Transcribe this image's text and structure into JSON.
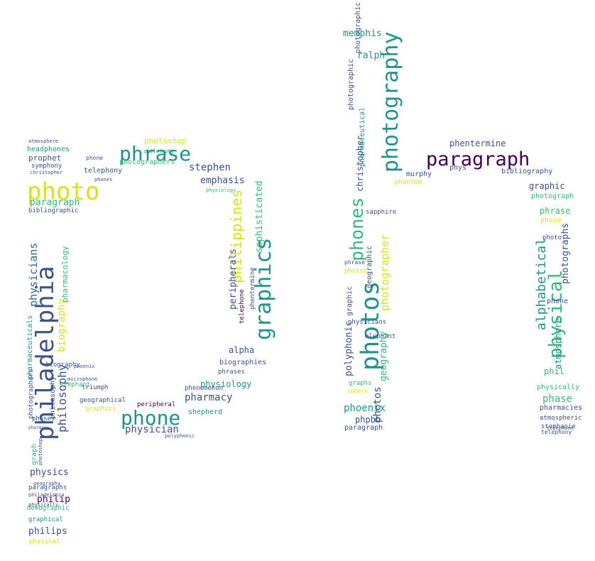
{
  "palette": {
    "dark_purple": "#440154",
    "indigo": "#3b528b",
    "blue": "#31688e",
    "teal": "#21918c",
    "green": "#35b779",
    "lime": "#90d743",
    "yellow": "#d8e219"
  },
  "words": [
    {
      "text": "phrase",
      "color": "#21918c"
    },
    {
      "text": "photoshop",
      "color": "#d8e219"
    },
    {
      "text": "photo",
      "color": "#d8e219"
    },
    {
      "text": "paragraph",
      "color": "#35b779"
    },
    {
      "text": "headphones",
      "color": "#21918c"
    },
    {
      "text": "prophet",
      "color": "#3b528b"
    },
    {
      "text": "symphony",
      "color": "#3b528b"
    },
    {
      "text": "christopher",
      "color": "#3b528b"
    },
    {
      "text": "atmosphere",
      "color": "#3b528b"
    },
    {
      "text": "bibliographic",
      "color": "#3b528b"
    },
    {
      "text": "philosophy",
      "color": "#21918c"
    },
    {
      "text": "photographers",
      "color": "#35b779"
    },
    {
      "text": "phone",
      "color": "#3b528b"
    },
    {
      "text": "telephony",
      "color": "#3b528b"
    },
    {
      "text": "phones",
      "color": "#3b528b"
    },
    {
      "text": "stephen",
      "color": "#3b528b"
    },
    {
      "text": "emphasis",
      "color": "#3b528b"
    },
    {
      "text": "physiology",
      "color": "#35b779"
    },
    {
      "text": "philippines",
      "color": "#d8e219"
    },
    {
      "text": "sophisticated",
      "color": "#35b779"
    },
    {
      "text": "graphics",
      "color": "#21918c"
    },
    {
      "text": "peripherals",
      "color": "#3b528b"
    },
    {
      "text": "telephone",
      "color": "#440154"
    },
    {
      "text": "philadelphia",
      "color": "#3b528b"
    },
    {
      "text": "physicians",
      "color": "#31688e"
    },
    {
      "text": "biography",
      "color": "#d8e219"
    },
    {
      "text": "pharmacology",
      "color": "#35b779"
    },
    {
      "text": "philosophy",
      "color": "#3b528b"
    },
    {
      "text": "elephant",
      "color": "#35b779"
    },
    {
      "text": "triumph",
      "color": "#3b528b"
    },
    {
      "text": "geographical",
      "color": "#3b528b"
    },
    {
      "text": "graphics",
      "color": "#d8e219"
    },
    {
      "text": "phone",
      "color": "#21918c"
    },
    {
      "text": "physician",
      "color": "#3b528b"
    },
    {
      "text": "peripheral",
      "color": "#440154"
    },
    {
      "text": "phenomenon",
      "color": "#3b528b"
    },
    {
      "text": "shepherd",
      "color": "#21918c"
    },
    {
      "text": "pharmacy",
      "color": "#3b528b"
    },
    {
      "text": "physiology",
      "color": "#21918c"
    },
    {
      "text": "phrases",
      "color": "#3b528b"
    },
    {
      "text": "biographies",
      "color": "#3b528b"
    },
    {
      "text": "alpha",
      "color": "#3b528b"
    },
    {
      "text": "phentermine",
      "color": "#3b528b"
    },
    {
      "text": "phases",
      "color": "#3b528b"
    },
    {
      "text": "graph",
      "color": "#35b779"
    },
    {
      "text": "physics",
      "color": "#3b528b"
    },
    {
      "text": "paragraphs",
      "color": "#3b528b"
    },
    {
      "text": "philip",
      "color": "#440154"
    },
    {
      "text": "demographic",
      "color": "#35b779"
    },
    {
      "text": "graphical",
      "color": "#21918c"
    },
    {
      "text": "philips",
      "color": "#3b528b"
    },
    {
      "text": "physical",
      "color": "#d8e219"
    },
    {
      "text": "pharmaceuticals",
      "color": "#21918c"
    },
    {
      "text": "memphis",
      "color": "#21918c"
    },
    {
      "text": "ralph",
      "color": "#21918c"
    },
    {
      "text": "photographic",
      "color": "#3b528b"
    },
    {
      "text": "christopher",
      "color": "#3b528b"
    },
    {
      "text": "pharmaceutical",
      "color": "#21918c"
    },
    {
      "text": "photography",
      "color": "#21918c"
    },
    {
      "text": "phones",
      "color": "#35b779"
    },
    {
      "text": "photos",
      "color": "#21918c"
    },
    {
      "text": "geographic",
      "color": "#3b528b"
    },
    {
      "text": "photographer",
      "color": "#d8e219"
    },
    {
      "text": "geography",
      "color": "#35b779"
    },
    {
      "text": "polyphonic",
      "color": "#3b528b"
    },
    {
      "text": "graphic",
      "color": "#3b528b"
    },
    {
      "text": "sapphire",
      "color": "#3b528b"
    },
    {
      "text": "phrase",
      "color": "#3b528b"
    },
    {
      "text": "photos",
      "color": "#d8e219"
    },
    {
      "text": "phoenix",
      "color": "#21918c"
    },
    {
      "text": "phpbb",
      "color": "#3b528b"
    },
    {
      "text": "paragraph",
      "color": "#3b528b"
    },
    {
      "text": "graphs",
      "color": "#35b779"
    },
    {
      "text": "sphere",
      "color": "#d8e219"
    },
    {
      "text": "paragraph",
      "color": "#440154"
    },
    {
      "text": "phentermine",
      "color": "#3b528b"
    },
    {
      "text": "murphy",
      "color": "#3b528b"
    },
    {
      "text": "phys",
      "color": "#3b528b"
    },
    {
      "text": "bibliography",
      "color": "#3b528b"
    },
    {
      "text": "phantom",
      "color": "#d8e219"
    },
    {
      "text": "graphic",
      "color": "#3b528b"
    },
    {
      "text": "photograph",
      "color": "#35b779"
    },
    {
      "text": "phrase",
      "color": "#35b779"
    },
    {
      "text": "phase",
      "color": "#d8e219"
    },
    {
      "text": "photo",
      "color": "#3b528b"
    },
    {
      "text": "photographs",
      "color": "#3b528b"
    },
    {
      "text": "alphabetical",
      "color": "#21918c"
    },
    {
      "text": "physical",
      "color": "#35b779"
    },
    {
      "text": "atmosphere",
      "color": "#21918c"
    },
    {
      "text": "phil",
      "color": "#35b779"
    },
    {
      "text": "physically",
      "color": "#35b779"
    },
    {
      "text": "phase",
      "color": "#35b779"
    },
    {
      "text": "pharmacies",
      "color": "#3b528b"
    },
    {
      "text": "atmospheric",
      "color": "#3b528b"
    },
    {
      "text": "stephanie",
      "color": "#3b528b"
    },
    {
      "text": "telephony",
      "color": "#3b528b"
    },
    {
      "text": "photos",
      "color": "#3b528b"
    },
    {
      "text": "philosophy",
      "color": "#3b528b"
    },
    {
      "text": "biography",
      "color": "#3b528b"
    },
    {
      "text": "phoenix",
      "color": "#3b528b"
    },
    {
      "text": "microphone",
      "color": "#3b528b"
    },
    {
      "text": "photoshop",
      "color": "#3b528b"
    },
    {
      "text": "geography",
      "color": "#3b528b"
    },
    {
      "text": "physically",
      "color": "#3b528b"
    },
    {
      "text": "philadelphia",
      "color": "#3b528b"
    },
    {
      "text": "photographers",
      "color": "#3b528b"
    },
    {
      "text": "pharmacy",
      "color": "#3b528b"
    },
    {
      "text": "polyphonic",
      "color": "#3b528b"
    },
    {
      "text": "physicians",
      "color": "#3b528b"
    },
    {
      "text": "telephone",
      "color": "#3b528b"
    },
    {
      "text": "elephant",
      "color": "#3b528b"
    },
    {
      "text": "photographic",
      "color": "#3b528b"
    },
    {
      "text": "phone",
      "color": "#3b528b"
    }
  ]
}
